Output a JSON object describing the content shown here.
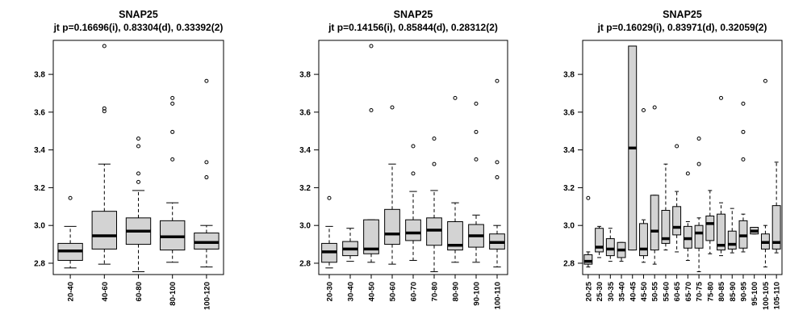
{
  "chart_data": [
    {
      "type": "boxplot",
      "title": "SNAP25",
      "subtitle": "jt p=0.16696(i), 0.83304(d), 0.33392(2)",
      "xlabel": "",
      "ylabel": "",
      "ylim": [
        2.74,
        3.98
      ],
      "yticks": [
        2.8,
        3.0,
        3.2,
        3.4,
        3.6,
        3.8
      ],
      "grid": false,
      "categories": [
        "20-40",
        "40-60",
        "60-80",
        "80-100",
        "100-120"
      ],
      "boxes": [
        {
          "min": 2.775,
          "q1": 2.815,
          "median": 2.865,
          "q3": 2.905,
          "max": 2.995,
          "outliers": [
            3.145
          ]
        },
        {
          "min": 2.795,
          "q1": 2.875,
          "median": 2.945,
          "q3": 3.075,
          "max": 3.325,
          "outliers": [
            3.605,
            3.62,
            3.95
          ]
        },
        {
          "min": 2.755,
          "q1": 2.9,
          "median": 2.97,
          "q3": 3.04,
          "max": 3.185,
          "outliers": [
            3.23,
            3.275,
            3.42,
            3.46
          ]
        },
        {
          "min": 2.805,
          "q1": 2.87,
          "median": 2.94,
          "q3": 3.025,
          "max": 3.12,
          "outliers": [
            3.35,
            3.495,
            3.645,
            3.675
          ]
        },
        {
          "min": 2.78,
          "q1": 2.875,
          "median": 2.91,
          "q3": 2.96,
          "max": 3.0,
          "outliers": [
            3.255,
            3.335,
            3.765
          ]
        }
      ]
    },
    {
      "type": "boxplot",
      "title": "SNAP25",
      "subtitle": "jt p=0.14156(i), 0.85844(d), 0.28312(2)",
      "xlabel": "",
      "ylabel": "",
      "ylim": [
        2.74,
        3.98
      ],
      "yticks": [
        2.8,
        3.0,
        3.2,
        3.4,
        3.6,
        3.8
      ],
      "grid": false,
      "categories": [
        "20-30",
        "30-40",
        "40-50",
        "50-60",
        "60-70",
        "70-80",
        "80-90",
        "90-100",
        "100-110"
      ],
      "boxes": [
        {
          "min": 2.775,
          "q1": 2.805,
          "median": 2.86,
          "q3": 2.905,
          "max": 2.995,
          "outliers": [
            3.145
          ]
        },
        {
          "min": 2.81,
          "q1": 2.84,
          "median": 2.875,
          "q3": 2.915,
          "max": 2.985,
          "outliers": []
        },
        {
          "min": 2.805,
          "q1": 2.85,
          "median": 2.875,
          "q3": 3.03,
          "max": 3.03,
          "outliers": [
            3.61,
            3.95
          ]
        },
        {
          "min": 2.795,
          "q1": 2.9,
          "median": 2.955,
          "q3": 3.085,
          "max": 3.325,
          "outliers": [
            3.625
          ]
        },
        {
          "min": 2.815,
          "q1": 2.92,
          "median": 2.96,
          "q3": 3.03,
          "max": 3.18,
          "outliers": [
            3.275,
            3.42
          ]
        },
        {
          "min": 2.755,
          "q1": 2.895,
          "median": 2.975,
          "q3": 3.04,
          "max": 3.185,
          "outliers": [
            3.325,
            3.46
          ]
        },
        {
          "min": 2.805,
          "q1": 2.87,
          "median": 2.895,
          "q3": 3.02,
          "max": 3.12,
          "outliers": [
            3.675
          ]
        },
        {
          "min": 2.805,
          "q1": 2.885,
          "median": 2.945,
          "q3": 3.005,
          "max": 3.055,
          "outliers": [
            3.35,
            3.495,
            3.645
          ]
        },
        {
          "min": 2.78,
          "q1": 2.875,
          "median": 2.91,
          "q3": 2.955,
          "max": 3.0,
          "outliers": [
            3.255,
            3.335,
            3.765
          ]
        }
      ]
    },
    {
      "type": "boxplot",
      "title": "SNAP25",
      "subtitle": "jt p=0.16029(i), 0.83971(d), 0.32059(2)",
      "xlabel": "",
      "ylabel": "",
      "ylim": [
        2.74,
        3.98
      ],
      "yticks": [
        2.8,
        3.0,
        3.2,
        3.4,
        3.6,
        3.8
      ],
      "grid": false,
      "categories": [
        "20-25",
        "25-30",
        "30-35",
        "35-40",
        "40-45",
        "45-50",
        "50-55",
        "55-60",
        "60-65",
        "65-70",
        "70-75",
        "75-80",
        "80-85",
        "85-90",
        "90-95",
        "95-100",
        "100-105",
        "105-110"
      ],
      "boxes": [
        {
          "min": 2.78,
          "q1": 2.795,
          "median": 2.81,
          "q3": 2.845,
          "max": 2.86,
          "outliers": [
            3.145
          ]
        },
        {
          "min": 2.83,
          "q1": 2.86,
          "median": 2.885,
          "q3": 2.985,
          "max": 2.995,
          "outliers": []
        },
        {
          "min": 2.81,
          "q1": 2.84,
          "median": 2.875,
          "q3": 2.93,
          "max": 2.985,
          "outliers": []
        },
        {
          "min": 2.81,
          "q1": 2.83,
          "median": 2.87,
          "q3": 2.91,
          "max": 2.91,
          "outliers": []
        },
        {
          "min": 2.87,
          "q1": 2.87,
          "median": 3.41,
          "q3": 3.95,
          "max": 3.95,
          "outliers": []
        },
        {
          "min": 2.805,
          "q1": 2.84,
          "median": 2.875,
          "q3": 3.01,
          "max": 3.03,
          "outliers": [
            3.61
          ]
        },
        {
          "min": 2.795,
          "q1": 2.87,
          "median": 2.97,
          "q3": 3.16,
          "max": 3.16,
          "outliers": [
            3.625
          ]
        },
        {
          "min": 2.87,
          "q1": 2.905,
          "median": 2.93,
          "q3": 3.08,
          "max": 3.325,
          "outliers": []
        },
        {
          "min": 2.86,
          "q1": 2.95,
          "median": 2.99,
          "q3": 3.1,
          "max": 3.18,
          "outliers": [
            3.42
          ]
        },
        {
          "min": 2.815,
          "q1": 2.88,
          "median": 2.93,
          "q3": 2.995,
          "max": 3.02,
          "outliers": [
            3.275
          ]
        },
        {
          "min": 2.755,
          "q1": 2.88,
          "median": 2.96,
          "q3": 3.0,
          "max": 3.04,
          "outliers": [
            3.325,
            3.46
          ]
        },
        {
          "min": 2.85,
          "q1": 2.92,
          "median": 3.01,
          "q3": 3.05,
          "max": 3.185,
          "outliers": []
        },
        {
          "min": 2.84,
          "q1": 2.87,
          "median": 2.895,
          "q3": 3.06,
          "max": 3.12,
          "outliers": [
            3.675
          ]
        },
        {
          "min": 2.855,
          "q1": 2.875,
          "median": 2.9,
          "q3": 2.97,
          "max": 3.09,
          "outliers": []
        },
        {
          "min": 2.86,
          "q1": 2.88,
          "median": 2.945,
          "q3": 3.025,
          "max": 3.06,
          "outliers": [
            3.35,
            3.495,
            3.645
          ]
        },
        {
          "min": 2.955,
          "q1": 2.955,
          "median": 2.97,
          "q3": 2.99,
          "max": 2.99,
          "outliers": []
        },
        {
          "min": 2.78,
          "q1": 2.875,
          "median": 2.91,
          "q3": 2.955,
          "max": 3.0,
          "outliers": [
            3.765
          ]
        },
        {
          "min": 2.855,
          "q1": 2.875,
          "median": 2.91,
          "q3": 3.105,
          "max": 3.335,
          "outliers": []
        }
      ]
    }
  ]
}
